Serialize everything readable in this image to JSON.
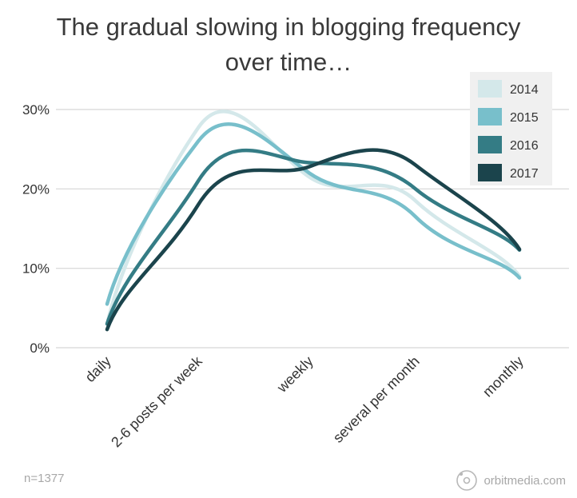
{
  "title_lines": [
    "The gradual slowing in blogging frequency",
    "over time…"
  ],
  "footnote": "n=1377",
  "brand": "orbitmedia.com",
  "chart_data": {
    "type": "line",
    "categories": [
      "daily",
      "2-6 posts per week",
      "weekly",
      "several per month",
      "monthly"
    ],
    "y_tick_labels": [
      "0%",
      "10%",
      "20%",
      "30%"
    ],
    "ylim": [
      0,
      30
    ],
    "y_unit": "%",
    "grid": true,
    "legend_position": "top-right",
    "series": [
      {
        "name": "2014",
        "color": "#d4e8ea",
        "values": [
          3,
          27.7,
          21.5,
          18.5,
          9
        ]
      },
      {
        "name": "2015",
        "color": "#78bfcb",
        "values": [
          5.5,
          26,
          22,
          16.5,
          8.8
        ]
      },
      {
        "name": "2016",
        "color": "#347c85",
        "values": [
          3,
          21,
          23.3,
          20,
          12.3
        ]
      },
      {
        "name": "2017",
        "color": "#1b444c",
        "values": [
          2.3,
          18,
          22.8,
          23,
          12.4
        ]
      }
    ]
  }
}
